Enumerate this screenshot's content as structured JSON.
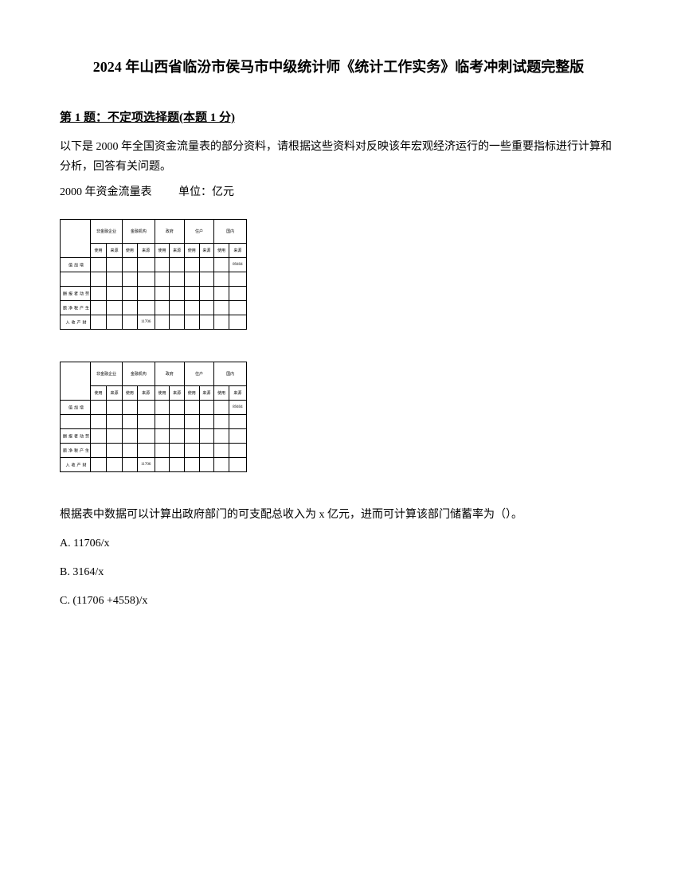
{
  "title": "2024 年山西省临汾市侯马市中级统计师《统计工作实务》临考冲刺试题完整版",
  "question_header": "第 1 题：不定项选择题(本题 1 分)",
  "intro_text": "以下是 2000 年全国资金流量表的部分资料，请根据这些资料对反映该年宏观经济运行的一些重要指标进行计算和分析，回答有关问题。",
  "table_caption_label": "2000 年资金流量表",
  "table_caption_unit": "单位：亿元",
  "table": {
    "header_main": [
      "非金融企业",
      "金融机构",
      "政府",
      "住户",
      "国内"
    ],
    "header_sub": [
      "使用",
      "来源",
      "使用",
      "来源",
      "使用",
      "来源",
      "使用",
      "来源",
      "使用",
      "来源"
    ],
    "rows": [
      {
        "label": "增加值",
        "cells": [
          "",
          "",
          "",
          "",
          "",
          "",
          "",
          "",
          "",
          "89404"
        ]
      },
      {
        "label": "",
        "cells": [
          "",
          "",
          "",
          "",
          "",
          "",
          "",
          "",
          "",
          ""
        ]
      },
      {
        "label": "劳动者报酬",
        "cells": [
          "",
          "",
          "",
          "",
          "",
          "",
          "",
          "",
          "",
          ""
        ]
      },
      {
        "label": "生产税净额",
        "cells": [
          "",
          "",
          "",
          "",
          "",
          "",
          "",
          "",
          "",
          ""
        ]
      },
      {
        "label": "财产收入",
        "cells": [
          "",
          "",
          "",
          "11706",
          "",
          "",
          "",
          "",
          "",
          ""
        ]
      }
    ]
  },
  "question_text": "根据表中数据可以计算出政府部门的可支配总收入为 x 亿元，进而可计算该部门储蓄率为（）。",
  "options": {
    "a": "A. 11706/x",
    "b": "B. 3164/x",
    "c": "C. (11706 +4558)/x"
  }
}
